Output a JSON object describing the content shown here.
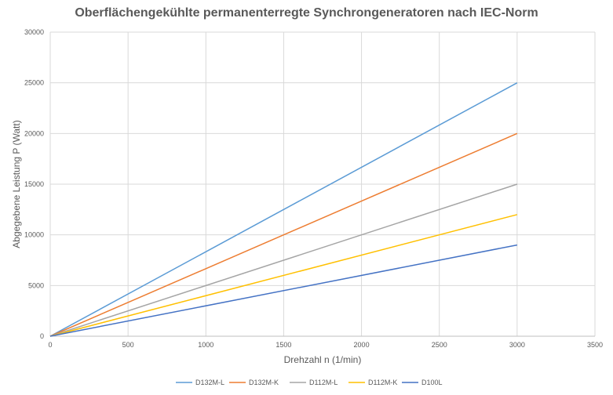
{
  "chart_data": {
    "type": "line",
    "title": "Oberflächengekühlte permanenterregte Synchrongeneratoren nach IEC-Norm",
    "xlabel": "Drehzahl n (1/min)",
    "ylabel": "Abgegebene Leistung P (Watt)",
    "xlim": [
      0,
      3500
    ],
    "ylim": [
      0,
      30000
    ],
    "xticks": [
      0,
      500,
      1000,
      1500,
      2000,
      2500,
      3000,
      3500
    ],
    "yticks": [
      0,
      5000,
      10000,
      15000,
      20000,
      25000,
      30000
    ],
    "grid": true,
    "legend_position": "bottom",
    "series": [
      {
        "name": "D132M-L",
        "color": "#5B9BD5",
        "x": [
          0,
          3000
        ],
        "y": [
          0,
          25000
        ]
      },
      {
        "name": "D132M-K",
        "color": "#ED7D31",
        "x": [
          0,
          3000
        ],
        "y": [
          0,
          20000
        ]
      },
      {
        "name": "D112M-L",
        "color": "#A5A5A5",
        "x": [
          0,
          3000
        ],
        "y": [
          0,
          15000
        ]
      },
      {
        "name": "D112M-K",
        "color": "#FFC000",
        "x": [
          0,
          3000
        ],
        "y": [
          0,
          12000
        ]
      },
      {
        "name": "D100L",
        "color": "#4472C4",
        "x": [
          0,
          3000
        ],
        "y": [
          0,
          9000
        ]
      }
    ]
  }
}
